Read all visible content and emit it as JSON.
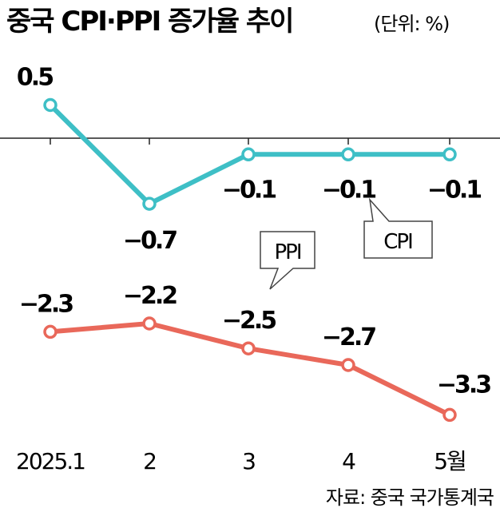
{
  "title": "중국 CPI·PPI 증가율 추이",
  "unit": "(단위: %)",
  "source": "자료: 중국 국가통계국",
  "colors": {
    "cpi": "#3ebfc6",
    "ppi": "#e9685a",
    "axis": "#222222",
    "text": "#111111"
  },
  "chart_data": {
    "type": "line",
    "categories": [
      "2025.1",
      "2",
      "3",
      "4",
      "5월"
    ],
    "series": [
      {
        "name": "CPI",
        "values": [
          0.5,
          -0.7,
          -0.1,
          -0.1,
          -0.1
        ],
        "labels": [
          "0.5",
          "−0.7",
          "−0.1",
          "−0.1",
          "−0.1"
        ]
      },
      {
        "name": "PPI",
        "values": [
          -2.3,
          -2.2,
          -2.5,
          -2.7,
          -3.3
        ],
        "labels": [
          "−2.3",
          "−2.2",
          "−2.5",
          "−2.7",
          "−3.3"
        ]
      }
    ]
  }
}
